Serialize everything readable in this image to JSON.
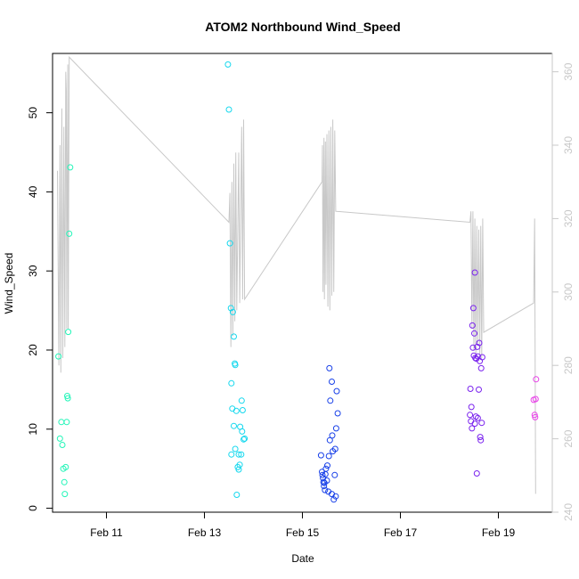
{
  "chart_data": {
    "type": "scatter",
    "title": "ATOM2 Northbound Wind_Speed",
    "xlabel": "Date",
    "ylabel": "Wind_Speed",
    "x_ticks": [
      "Feb 11",
      "Feb 13",
      "Feb 15",
      "Feb 17",
      "Feb 19"
    ],
    "x_tick_values": [
      11,
      13,
      15,
      17,
      19
    ],
    "xlim": [
      9.9,
      20.1
    ],
    "ylim": [
      -0.5,
      57.5
    ],
    "y_ticks": [
      0,
      10,
      20,
      30,
      40,
      50
    ],
    "y2lim": [
      240,
      365
    ],
    "y2_ticks": [
      240,
      260,
      280,
      300,
      320,
      340,
      360
    ],
    "grid": false,
    "colors": {
      "secondary_line": "#c8c8c8",
      "right_axis": "#c8c8c8",
      "cluster_palette": [
        "#22f5b8",
        "#16d8ee",
        "#1840e8",
        "#7a22ee",
        "#e840e8"
      ]
    },
    "series": [
      {
        "values": [
          {
            "x": 10.02,
            "y": 19.2,
            "c": 0
          },
          {
            "x": 10.05,
            "y": 8.8,
            "c": 0
          },
          {
            "x": 10.08,
            "y": 10.9,
            "c": 0
          },
          {
            "x": 10.1,
            "y": 8.0,
            "c": 0
          },
          {
            "x": 10.12,
            "y": 5.0,
            "c": 0
          },
          {
            "x": 10.14,
            "y": 3.3,
            "c": 0
          },
          {
            "x": 10.15,
            "y": 1.8,
            "c": 0
          },
          {
            "x": 10.17,
            "y": 5.2,
            "c": 0
          },
          {
            "x": 10.19,
            "y": 10.9,
            "c": 0
          },
          {
            "x": 10.2,
            "y": 14.2,
            "c": 0
          },
          {
            "x": 10.21,
            "y": 13.9,
            "c": 0
          },
          {
            "x": 10.22,
            "y": 22.3,
            "c": 0
          },
          {
            "x": 10.24,
            "y": 34.7,
            "c": 0
          },
          {
            "x": 10.26,
            "y": 43.1,
            "c": 0
          },
          {
            "x": 13.48,
            "y": 56.1,
            "c": 1
          },
          {
            "x": 13.5,
            "y": 50.4,
            "c": 1
          },
          {
            "x": 13.52,
            "y": 33.5,
            "c": 1
          },
          {
            "x": 13.54,
            "y": 25.3,
            "c": 1
          },
          {
            "x": 13.55,
            "y": 15.8,
            "c": 1
          },
          {
            "x": 13.58,
            "y": 24.8,
            "c": 1
          },
          {
            "x": 13.6,
            "y": 21.7,
            "c": 1
          },
          {
            "x": 13.62,
            "y": 18.3,
            "c": 1
          },
          {
            "x": 13.63,
            "y": 18.1,
            "c": 1
          },
          {
            "x": 13.57,
            "y": 12.6,
            "c": 1
          },
          {
            "x": 13.65,
            "y": 12.3,
            "c": 1
          },
          {
            "x": 13.6,
            "y": 10.4,
            "c": 1
          },
          {
            "x": 13.55,
            "y": 6.8,
            "c": 1
          },
          {
            "x": 13.63,
            "y": 7.5,
            "c": 1
          },
          {
            "x": 13.7,
            "y": 6.8,
            "c": 1
          },
          {
            "x": 13.72,
            "y": 5.5,
            "c": 1
          },
          {
            "x": 13.7,
            "y": 4.9,
            "c": 1
          },
          {
            "x": 13.66,
            "y": 1.7,
            "c": 1
          },
          {
            "x": 13.73,
            "y": 10.3,
            "c": 1
          },
          {
            "x": 13.76,
            "y": 13.6,
            "c": 1
          },
          {
            "x": 13.78,
            "y": 12.4,
            "c": 1
          },
          {
            "x": 13.77,
            "y": 9.7,
            "c": 1
          },
          {
            "x": 13.8,
            "y": 8.7,
            "c": 1
          },
          {
            "x": 13.82,
            "y": 8.8,
            "c": 1
          },
          {
            "x": 13.75,
            "y": 6.8,
            "c": 1
          },
          {
            "x": 13.68,
            "y": 5.2,
            "c": 1
          },
          {
            "x": 15.38,
            "y": 6.7,
            "c": 2
          },
          {
            "x": 15.4,
            "y": 4.6,
            "c": 2
          },
          {
            "x": 15.41,
            "y": 4.2,
            "c": 2
          },
          {
            "x": 15.42,
            "y": 3.8,
            "c": 2
          },
          {
            "x": 15.43,
            "y": 3.3,
            "c": 2
          },
          {
            "x": 15.44,
            "y": 2.8,
            "c": 2
          },
          {
            "x": 15.45,
            "y": 3.2,
            "c": 2
          },
          {
            "x": 15.46,
            "y": 2.3,
            "c": 2
          },
          {
            "x": 15.47,
            "y": 4.3,
            "c": 2
          },
          {
            "x": 15.48,
            "y": 5.0,
            "c": 2
          },
          {
            "x": 15.5,
            "y": 3.5,
            "c": 2
          },
          {
            "x": 15.51,
            "y": 5.4,
            "c": 2
          },
          {
            "x": 15.53,
            "y": 2.1,
            "c": 2
          },
          {
            "x": 15.54,
            "y": 6.6,
            "c": 2
          },
          {
            "x": 15.56,
            "y": 8.6,
            "c": 2
          },
          {
            "x": 15.57,
            "y": 13.6,
            "c": 2
          },
          {
            "x": 15.55,
            "y": 17.7,
            "c": 2
          },
          {
            "x": 15.6,
            "y": 16.0,
            "c": 2
          },
          {
            "x": 15.61,
            "y": 9.2,
            "c": 2
          },
          {
            "x": 15.62,
            "y": 7.2,
            "c": 2
          },
          {
            "x": 15.64,
            "y": 1.1,
            "c": 2
          },
          {
            "x": 15.6,
            "y": 1.8,
            "c": 2
          },
          {
            "x": 15.66,
            "y": 4.2,
            "c": 2
          },
          {
            "x": 15.68,
            "y": 1.5,
            "c": 2
          },
          {
            "x": 15.67,
            "y": 7.5,
            "c": 2
          },
          {
            "x": 15.69,
            "y": 10.1,
            "c": 2
          },
          {
            "x": 15.7,
            "y": 14.8,
            "c": 2
          },
          {
            "x": 15.72,
            "y": 12.0,
            "c": 2
          },
          {
            "x": 18.42,
            "y": 11.8,
            "c": 3
          },
          {
            "x": 18.43,
            "y": 15.1,
            "c": 3
          },
          {
            "x": 18.44,
            "y": 11.0,
            "c": 3
          },
          {
            "x": 18.45,
            "y": 12.8,
            "c": 3
          },
          {
            "x": 18.46,
            "y": 10.1,
            "c": 3
          },
          {
            "x": 18.47,
            "y": 23.1,
            "c": 3
          },
          {
            "x": 18.48,
            "y": 20.3,
            "c": 3
          },
          {
            "x": 18.49,
            "y": 25.3,
            "c": 3
          },
          {
            "x": 18.5,
            "y": 19.3,
            "c": 3
          },
          {
            "x": 18.51,
            "y": 22.1,
            "c": 3
          },
          {
            "x": 18.52,
            "y": 29.8,
            "c": 3
          },
          {
            "x": 18.53,
            "y": 19.0,
            "c": 3
          },
          {
            "x": 18.54,
            "y": 11.6,
            "c": 3
          },
          {
            "x": 18.55,
            "y": 18.9,
            "c": 3
          },
          {
            "x": 18.56,
            "y": 4.4,
            "c": 3
          },
          {
            "x": 18.57,
            "y": 20.4,
            "c": 3
          },
          {
            "x": 18.58,
            "y": 11.4,
            "c": 3
          },
          {
            "x": 18.6,
            "y": 15.0,
            "c": 3
          },
          {
            "x": 18.61,
            "y": 20.9,
            "c": 3
          },
          {
            "x": 18.62,
            "y": 18.6,
            "c": 3
          },
          {
            "x": 18.63,
            "y": 9.0,
            "c": 3
          },
          {
            "x": 18.64,
            "y": 8.6,
            "c": 3
          },
          {
            "x": 18.65,
            "y": 17.7,
            "c": 3
          },
          {
            "x": 18.66,
            "y": 10.8,
            "c": 3
          },
          {
            "x": 18.67,
            "y": 19.1,
            "c": 3
          },
          {
            "x": 18.52,
            "y": 10.7,
            "c": 3
          },
          {
            "x": 18.58,
            "y": 19.2,
            "c": 3
          },
          {
            "x": 19.72,
            "y": 13.7,
            "c": 4
          },
          {
            "x": 19.74,
            "y": 11.8,
            "c": 4
          },
          {
            "x": 19.75,
            "y": 11.5,
            "c": 4
          },
          {
            "x": 19.76,
            "y": 13.8,
            "c": 4
          },
          {
            "x": 19.77,
            "y": 16.3,
            "c": 4
          }
        ]
      },
      {
        "axis": "right",
        "values": [
          {
            "x": 10.0,
            "y": 333
          },
          {
            "x": 10.03,
            "y": 280
          },
          {
            "x": 10.05,
            "y": 340
          },
          {
            "x": 10.07,
            "y": 278
          },
          {
            "x": 10.09,
            "y": 350
          },
          {
            "x": 10.11,
            "y": 282
          },
          {
            "x": 10.13,
            "y": 345
          },
          {
            "x": 10.15,
            "y": 285
          },
          {
            "x": 10.17,
            "y": 360
          },
          {
            "x": 10.18,
            "y": 355
          },
          {
            "x": 10.19,
            "y": 290
          },
          {
            "x": 10.21,
            "y": 362
          },
          {
            "x": 10.22,
            "y": 290
          },
          {
            "x": 10.24,
            "y": 364
          },
          {
            "x": 13.5,
            "y": 319
          },
          {
            "x": 13.52,
            "y": 327
          },
          {
            "x": 13.54,
            "y": 285
          },
          {
            "x": 13.56,
            "y": 330
          },
          {
            "x": 13.58,
            "y": 288
          },
          {
            "x": 13.6,
            "y": 335
          },
          {
            "x": 13.62,
            "y": 292
          },
          {
            "x": 13.64,
            "y": 338
          },
          {
            "x": 13.66,
            "y": 295
          },
          {
            "x": 13.7,
            "y": 338
          },
          {
            "x": 13.72,
            "y": 297
          },
          {
            "x": 13.76,
            "y": 345
          },
          {
            "x": 13.78,
            "y": 298
          },
          {
            "x": 13.8,
            "y": 347
          },
          {
            "x": 13.82,
            "y": 298
          },
          {
            "x": 15.4,
            "y": 330
          },
          {
            "x": 15.41,
            "y": 340
          },
          {
            "x": 15.42,
            "y": 300
          },
          {
            "x": 15.44,
            "y": 342
          },
          {
            "x": 15.45,
            "y": 298
          },
          {
            "x": 15.47,
            "y": 341
          },
          {
            "x": 15.48,
            "y": 302
          },
          {
            "x": 15.5,
            "y": 343
          },
          {
            "x": 15.52,
            "y": 296
          },
          {
            "x": 15.54,
            "y": 344
          },
          {
            "x": 15.56,
            "y": 295
          },
          {
            "x": 15.58,
            "y": 345
          },
          {
            "x": 15.6,
            "y": 299
          },
          {
            "x": 15.62,
            "y": 347
          },
          {
            "x": 15.64,
            "y": 300
          },
          {
            "x": 15.66,
            "y": 344
          },
          {
            "x": 15.68,
            "y": 322
          },
          {
            "x": 18.42,
            "y": 319
          },
          {
            "x": 18.44,
            "y": 322
          },
          {
            "x": 18.46,
            "y": 290
          },
          {
            "x": 18.48,
            "y": 322
          },
          {
            "x": 18.5,
            "y": 284
          },
          {
            "x": 18.52,
            "y": 320
          },
          {
            "x": 18.54,
            "y": 283
          },
          {
            "x": 18.56,
            "y": 318
          },
          {
            "x": 18.58,
            "y": 286
          },
          {
            "x": 18.6,
            "y": 317
          },
          {
            "x": 18.62,
            "y": 283
          },
          {
            "x": 18.64,
            "y": 318
          },
          {
            "x": 18.66,
            "y": 282
          },
          {
            "x": 18.68,
            "y": 320
          },
          {
            "x": 18.7,
            "y": 289
          },
          {
            "x": 19.72,
            "y": 297
          },
          {
            "x": 19.74,
            "y": 320
          },
          {
            "x": 19.76,
            "y": 245
          }
        ]
      }
    ]
  }
}
